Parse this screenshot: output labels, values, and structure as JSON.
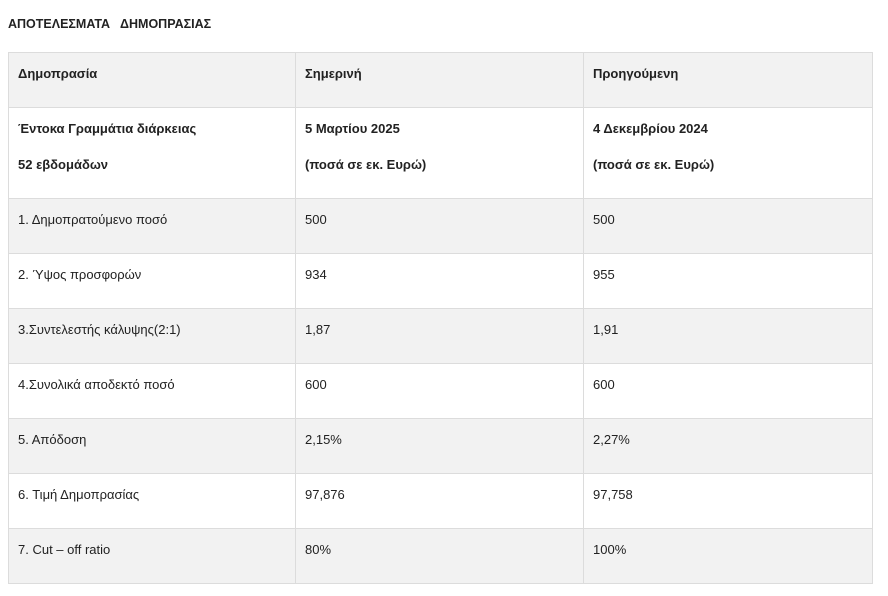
{
  "title": "ΑΠΟΤΕΛΕΣΜΑΤΑ   ΔΗΜΟΠΡΑΣΙΑΣ",
  "header": {
    "col1": "Δημοπρασία",
    "col2": "Σημερινή",
    "col3": "Προηγούμενη"
  },
  "subheader": {
    "col1_line1": "Έντοκα Γραμμάτια διάρκειας",
    "col1_line2": "52 εβδομάδων",
    "col2_line1": "5 Μαρτίου 2025",
    "col2_line2": "(ποσά σε εκ. Ευρώ)",
    "col3_line1": "4 Δεκεμβρίου 2024",
    "col3_line2": "(ποσά σε εκ. Ευρώ)"
  },
  "rows": [
    {
      "label": "1. Δημοπρατούμενο ποσό",
      "current": "500",
      "previous": "500"
    },
    {
      "label": "2. Ύψος προσφορών",
      "current": "934",
      "previous": "955"
    },
    {
      "label": "3.Συντελεστής κάλυψης(2:1)",
      "current": "1,87",
      "previous": "1,91"
    },
    {
      "label": "4.Συνολικά αποδεκτό ποσό",
      "current": "600",
      "previous": "600"
    },
    {
      "label": "5. Απόδοση",
      "current": "2,15%",
      "previous": "2,27%"
    },
    {
      "label": "6. Τιμή Δημοπρασίας",
      "current": "97,876",
      "previous": "97,758"
    },
    {
      "label": "7. Cut – off ratio",
      "current": "80%",
      "previous": "100%"
    }
  ]
}
